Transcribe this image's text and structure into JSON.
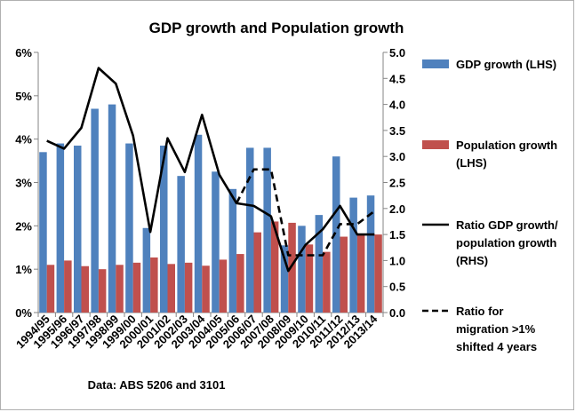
{
  "chart_data": {
    "type": "bar",
    "title": "GDP growth and Population growth",
    "source_note": "Data: ABS 5206 and 3101",
    "categories": [
      "1994/95",
      "1995/96",
      "1996/97",
      "1997/98",
      "1998/99",
      "1999/00",
      "2000/01",
      "2001/02",
      "2002/03",
      "2003/04",
      "2004/05",
      "2005/06",
      "2006/07",
      "2007/08",
      "2008/09",
      "2009/10",
      "2010/11",
      "2011/12",
      "2012/13",
      "2013/14"
    ],
    "y_left": {
      "ticks": [
        "0%",
        "1%",
        "2%",
        "3%",
        "4%",
        "5%",
        "6%"
      ],
      "ylim": [
        0,
        6
      ]
    },
    "y_right": {
      "ticks": [
        "0.0",
        "0.5",
        "1.0",
        "1.5",
        "2.0",
        "2.5",
        "3.0",
        "3.5",
        "4.0",
        "4.5",
        "5.0"
      ],
      "ylim": [
        0,
        5
      ]
    },
    "series": [
      {
        "name": "GDP growth (LHS)",
        "type": "bar",
        "axis": "left",
        "color": "#4f81bd",
        "values": [
          3.7,
          3.9,
          3.85,
          4.7,
          4.8,
          3.9,
          1.95,
          3.85,
          3.15,
          4.1,
          3.25,
          2.85,
          3.8,
          3.8,
          1.55,
          2.0,
          2.25,
          3.6,
          2.65,
          2.7
        ]
      },
      {
        "name": "Population growth (LHS)",
        "type": "bar",
        "axis": "left",
        "color": "#c0504d",
        "values": [
          1.1,
          1.2,
          1.07,
          1.0,
          1.1,
          1.15,
          1.27,
          1.12,
          1.15,
          1.08,
          1.22,
          1.35,
          1.85,
          2.1,
          2.07,
          1.57,
          1.4,
          1.75,
          1.8,
          1.8
        ]
      },
      {
        "name": "Ratio GDP growth/ population growth (RHS)",
        "type": "line",
        "axis": "right",
        "color": "#000000",
        "dash": false,
        "values": [
          3.3,
          3.15,
          3.55,
          4.7,
          4.4,
          3.4,
          1.55,
          3.35,
          2.7,
          3.8,
          2.65,
          2.1,
          2.05,
          1.85,
          0.8,
          1.3,
          1.6,
          2.05,
          1.5,
          1.5
        ]
      },
      {
        "name": "Ratio for migration >1% shifted 4 years",
        "type": "line",
        "axis": "right",
        "color": "#000000",
        "dash": true,
        "values": [
          null,
          null,
          null,
          null,
          null,
          null,
          null,
          null,
          null,
          null,
          null,
          2.1,
          2.75,
          2.75,
          1.1,
          1.1,
          1.1,
          1.7,
          1.7,
          1.95
        ]
      }
    ],
    "legend": {
      "placement": "right",
      "entries": [
        {
          "lines": [
            "GDP growth (LHS)"
          ],
          "kind": "bar",
          "color": "#4f81bd"
        },
        {
          "lines": [
            "Population growth",
            "(LHS)"
          ],
          "kind": "bar",
          "color": "#c0504d"
        },
        {
          "lines": [
            "Ratio GDP growth/",
            "population growth",
            "(RHS)"
          ],
          "kind": "line",
          "color": "#000000",
          "dash": false
        },
        {
          "lines": [
            "Ratio for",
            "migration >1%",
            "shifted 4 years"
          ],
          "kind": "line",
          "color": "#000000",
          "dash": true
        }
      ]
    },
    "grid": false
  }
}
